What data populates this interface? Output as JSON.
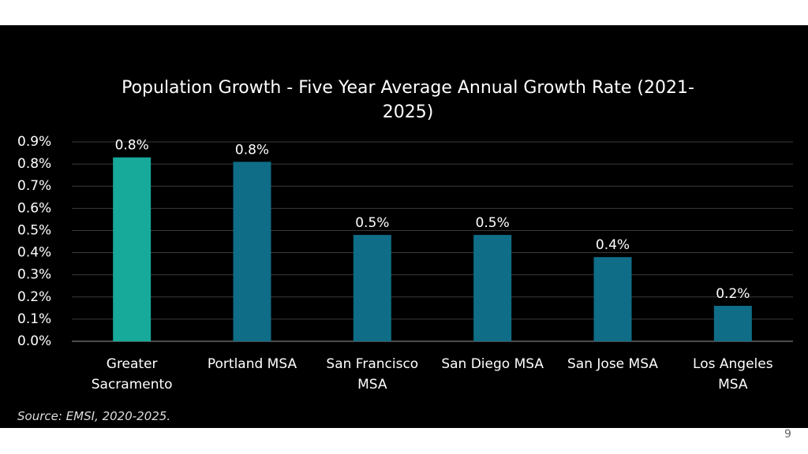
{
  "chart_data": {
    "type": "bar",
    "title": "Population Growth - Five Year Average Annual Growth Rate (2021-\n2025)",
    "categories": [
      "Greater\nSacramento",
      "Portland MSA",
      "San Francisco\nMSA",
      "San Diego MSA",
      "San Jose MSA",
      "Los Angeles\nMSA"
    ],
    "values": [
      0.83,
      0.81,
      0.48,
      0.48,
      0.38,
      0.16
    ],
    "value_labels": [
      "0.8%",
      "0.8%",
      "0.5%",
      "0.5%",
      "0.4%",
      "0.2%"
    ],
    "colors": [
      "#17a99a",
      "#0f6d87",
      "#0f6d87",
      "#0f6d87",
      "#0f6d87",
      "#0f6d87"
    ],
    "ylim": [
      0,
      0.9
    ],
    "yticks": [
      {
        "value": 0,
        "label": "0.0%"
      },
      {
        "value": 0.1,
        "label": "0.1%"
      },
      {
        "value": 0.2,
        "label": "0.2%"
      },
      {
        "value": 0.3,
        "label": "0.3%"
      },
      {
        "value": 0.4,
        "label": "0.4%"
      },
      {
        "value": 0.5,
        "label": "0.5%"
      },
      {
        "value": 0.6,
        "label": "0.6%"
      },
      {
        "value": 0.7,
        "label": "0.7%"
      },
      {
        "value": 0.8,
        "label": "0.8%"
      },
      {
        "value": 0.9,
        "label": "0.9%"
      }
    ],
    "grid": true,
    "source": "Source:  EMSI, 2020-2025."
  },
  "page_number": "9"
}
